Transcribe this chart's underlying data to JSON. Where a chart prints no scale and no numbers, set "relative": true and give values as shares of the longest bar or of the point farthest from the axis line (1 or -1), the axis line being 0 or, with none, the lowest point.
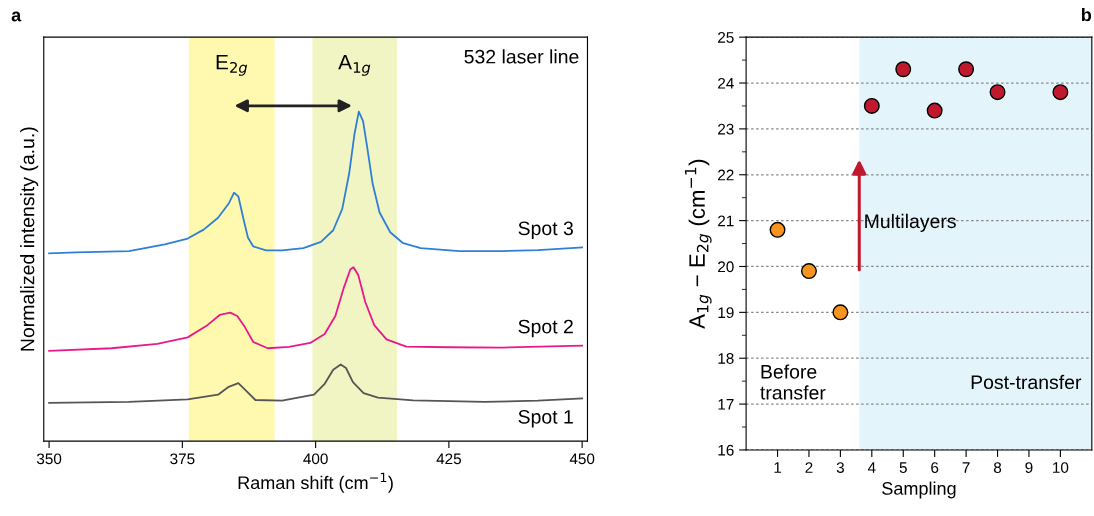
{
  "chart_data": [
    {
      "type": "line",
      "xlabel": "Raman shift (cm$^{−1}$)",
      "ylabel": "Normalized intensity (a.u.)",
      "relative": true,
      "xlim": [
        349,
        451
      ],
      "xticks": [
        350,
        375,
        400,
        425,
        450
      ],
      "tick_labels": "x",
      "grid": false,
      "legend": false,
      "marker": "none",
      "line_style": "solid",
      "annotations": [
        "a",
        "532 laser line"
      ],
      "bands": [
        {
          "axis": "x",
          "from": 376.2,
          "to": 392.3,
          "label": "E$_{2g}$",
          "color": "#fff9b0"
        },
        {
          "axis": "x",
          "from": 399.4,
          "to": 415.3,
          "label": "A$_{1g}$",
          "color": "#f1f5c4"
        }
      ],
      "series": [
        {
          "name": "Spot 3",
          "color": "#2f7fd8",
          "x": [
            350,
            355,
            365,
            371.7,
            376,
            379,
            381.7,
            383.7,
            384.7,
            385.5,
            386.5,
            387.3,
            388.3,
            390.7,
            393.7,
            397.7,
            401,
            403.3,
            405,
            406.3,
            407.3,
            408.1,
            408.9,
            409.7,
            410.7,
            412,
            414,
            416.3,
            419.7,
            427,
            435,
            441.7,
            450
          ],
          "values": [
            0.57,
            0.573,
            0.577,
            0.597,
            0.615,
            0.642,
            0.678,
            0.721,
            0.754,
            0.743,
            0.672,
            0.618,
            0.591,
            0.579,
            0.579,
            0.586,
            0.605,
            0.64,
            0.705,
            0.813,
            0.933,
            1.0,
            0.971,
            0.889,
            0.781,
            0.694,
            0.634,
            0.602,
            0.586,
            0.577,
            0.577,
            0.58,
            0.588
          ]
        },
        {
          "name": "Spot 2",
          "color": "#e8198b",
          "x": [
            350,
            361.7,
            370.3,
            376,
            379.7,
            382,
            384,
            385.3,
            386.7,
            388.3,
            391,
            395,
            399,
            401.7,
            403.7,
            405.3,
            406.5,
            407.1,
            408,
            409.3,
            411,
            413.3,
            417,
            425,
            435,
            450
          ],
          "values": [
            0.274,
            0.282,
            0.295,
            0.315,
            0.352,
            0.383,
            0.39,
            0.38,
            0.347,
            0.301,
            0.282,
            0.286,
            0.298,
            0.325,
            0.38,
            0.466,
            0.521,
            0.528,
            0.504,
            0.423,
            0.352,
            0.309,
            0.287,
            0.285,
            0.284,
            0.29
          ]
        },
        {
          "name": "Spot 1",
          "color": "#555555",
          "x": [
            350,
            365,
            376,
            381.7,
            383.7,
            385.5,
            386.7,
            388.7,
            393.7,
            399.7,
            401.7,
            403.3,
            404.7,
            405.7,
            407,
            409,
            411.7,
            418.3,
            431.7,
            441.7,
            450
          ],
          "values": [
            0.116,
            0.119,
            0.127,
            0.141,
            0.165,
            0.176,
            0.157,
            0.125,
            0.123,
            0.141,
            0.174,
            0.217,
            0.233,
            0.222,
            0.179,
            0.146,
            0.132,
            0.124,
            0.119,
            0.123,
            0.13
          ]
        }
      ]
    },
    {
      "type": "scatter",
      "xlabel": "Sampling",
      "ylabel": "A$_{1g}$ − E$_{2g}$ (cm$^{−1}$)",
      "xlim": [
        0,
        11
      ],
      "xticks": [
        1,
        2,
        3,
        4,
        5,
        6,
        7,
        8,
        9,
        10
      ],
      "ylim": [
        16,
        25
      ],
      "yticks": [
        16,
        17,
        18,
        19,
        20,
        21,
        22,
        23,
        24,
        25
      ],
      "grid": "y",
      "legend": false,
      "marker": "circle",
      "annotations": [
        "b",
        "Multilayers",
        "Before\ntransfer"
      ],
      "bands": [
        {
          "axis": "x",
          "from": 3.6,
          "to": 11,
          "label": "Post-transfer",
          "color": "#e3f4fb"
        }
      ],
      "series": [
        {
          "color": "#f7941d",
          "x": [
            1,
            2,
            3
          ],
          "values": [
            20.8,
            19.9,
            19.0
          ]
        },
        {
          "color": "#c0192e",
          "x": [
            4,
            5,
            6,
            7,
            8,
            10
          ],
          "values": [
            23.5,
            24.3,
            23.4,
            24.3,
            23.8,
            23.8
          ]
        }
      ]
    }
  ]
}
